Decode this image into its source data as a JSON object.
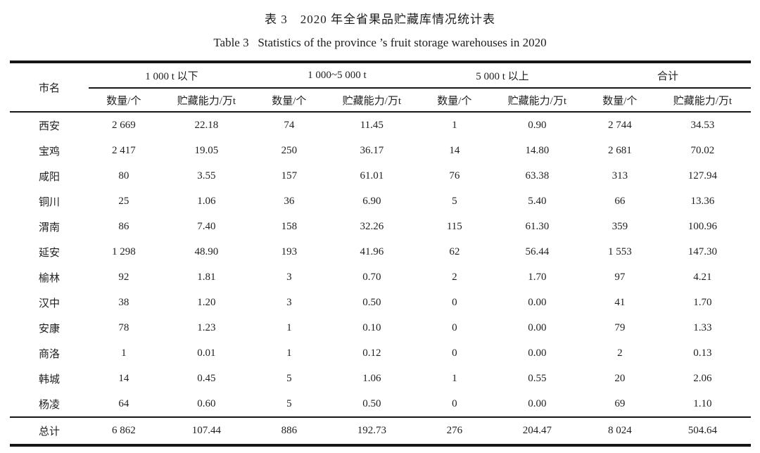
{
  "page": {
    "title_cn": "表 3　2020 年全省果品贮藏库情况统计表",
    "title_en": "Table 3   Statistics of the province ’s fruit storage warehouses in 2020"
  },
  "table": {
    "corner_header": "市名",
    "groups": [
      "1 000 t 以下",
      "1 000~5 000 t",
      "5 000 t 以上",
      "合计"
    ],
    "sub_headers": [
      "数量/个",
      "贮藏能力/万t"
    ],
    "rows": [
      {
        "city": "西安",
        "values": [
          "2 669",
          "22.18",
          "74",
          "11.45",
          "1",
          "0.90",
          "2 744",
          "34.53"
        ]
      },
      {
        "city": "宝鸡",
        "values": [
          "2 417",
          "19.05",
          "250",
          "36.17",
          "14",
          "14.80",
          "2 681",
          "70.02"
        ]
      },
      {
        "city": "咸阳",
        "values": [
          "80",
          "3.55",
          "157",
          "61.01",
          "76",
          "63.38",
          "313",
          "127.94"
        ]
      },
      {
        "city": "铜川",
        "values": [
          "25",
          "1.06",
          "36",
          "6.90",
          "5",
          "5.40",
          "66",
          "13.36"
        ]
      },
      {
        "city": "渭南",
        "values": [
          "86",
          "7.40",
          "158",
          "32.26",
          "115",
          "61.30",
          "359",
          "100.96"
        ]
      },
      {
        "city": "延安",
        "values": [
          "1 298",
          "48.90",
          "193",
          "41.96",
          "62",
          "56.44",
          "1 553",
          "147.30"
        ]
      },
      {
        "city": "榆林",
        "values": [
          "92",
          "1.81",
          "3",
          "0.70",
          "2",
          "1.70",
          "97",
          "4.21"
        ]
      },
      {
        "city": "汉中",
        "values": [
          "38",
          "1.20",
          "3",
          "0.50",
          "0",
          "0.00",
          "41",
          "1.70"
        ]
      },
      {
        "city": "安康",
        "values": [
          "78",
          "1.23",
          "1",
          "0.10",
          "0",
          "0.00",
          "79",
          "1.33"
        ]
      },
      {
        "city": "商洛",
        "values": [
          "1",
          "0.01",
          "1",
          "0.12",
          "0",
          "0.00",
          "2",
          "0.13"
        ]
      },
      {
        "city": "韩城",
        "values": [
          "14",
          "0.45",
          "5",
          "1.06",
          "1",
          "0.55",
          "20",
          "2.06"
        ]
      },
      {
        "city": "杨凌",
        "values": [
          "64",
          "0.60",
          "5",
          "0.50",
          "0",
          "0.00",
          "69",
          "1.10"
        ]
      }
    ],
    "total_row": {
      "city": "总计",
      "values": [
        "6 862",
        "107.44",
        "886",
        "192.73",
        "276",
        "204.47",
        "8 024",
        "504.64"
      ]
    }
  },
  "colors": {
    "background": "#ffffff",
    "text": "#1f1f1f",
    "rule": "#161616"
  }
}
